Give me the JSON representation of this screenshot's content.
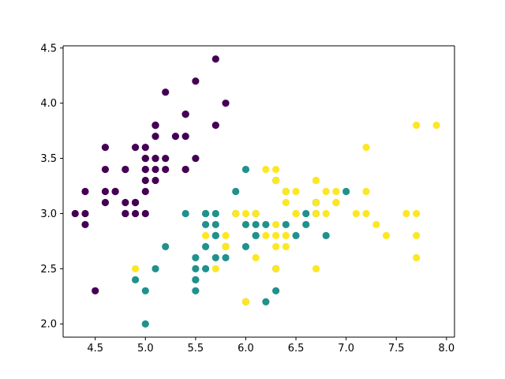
{
  "chart_data": {
    "type": "scatter",
    "title": "",
    "xlabel": "",
    "ylabel": "",
    "xlim": [
      4.18,
      8.08
    ],
    "ylim": [
      1.88,
      4.52
    ],
    "xticks": [
      "4.5",
      "5.0",
      "5.5",
      "6.0",
      "6.5",
      "7.0",
      "7.5",
      "8.0"
    ],
    "yticks": [
      "2.0",
      "2.5",
      "3.0",
      "3.5",
      "4.0",
      "4.5"
    ],
    "grid": false,
    "legend": "none",
    "series": [
      {
        "color": "#440154",
        "points": [
          [
            5.1,
            3.5
          ],
          [
            4.9,
            3.0
          ],
          [
            4.7,
            3.2
          ],
          [
            4.6,
            3.1
          ],
          [
            5.0,
            3.6
          ],
          [
            5.4,
            3.9
          ],
          [
            4.6,
            3.4
          ],
          [
            5.0,
            3.4
          ],
          [
            4.4,
            2.9
          ],
          [
            4.9,
            3.1
          ],
          [
            5.4,
            3.7
          ],
          [
            4.8,
            3.4
          ],
          [
            4.8,
            3.0
          ],
          [
            4.3,
            3.0
          ],
          [
            5.8,
            4.0
          ],
          [
            5.7,
            4.4
          ],
          [
            5.4,
            3.9
          ],
          [
            5.1,
            3.5
          ],
          [
            5.7,
            3.8
          ],
          [
            5.1,
            3.8
          ],
          [
            5.4,
            3.4
          ],
          [
            5.1,
            3.7
          ],
          [
            4.6,
            3.6
          ],
          [
            5.1,
            3.3
          ],
          [
            4.8,
            3.4
          ],
          [
            5.0,
            3.0
          ],
          [
            5.0,
            3.4
          ],
          [
            5.2,
            3.5
          ],
          [
            5.2,
            3.4
          ],
          [
            4.7,
            3.2
          ],
          [
            4.8,
            3.1
          ],
          [
            5.4,
            3.4
          ],
          [
            5.2,
            4.1
          ],
          [
            5.5,
            4.2
          ],
          [
            4.9,
            3.1
          ],
          [
            5.0,
            3.2
          ],
          [
            5.5,
            3.5
          ],
          [
            4.9,
            3.6
          ],
          [
            4.4,
            3.0
          ],
          [
            5.1,
            3.4
          ],
          [
            5.0,
            3.5
          ],
          [
            4.5,
            2.3
          ],
          [
            4.4,
            3.2
          ],
          [
            5.0,
            3.5
          ],
          [
            5.1,
            3.8
          ],
          [
            4.8,
            3.0
          ],
          [
            5.1,
            3.8
          ],
          [
            4.6,
            3.2
          ],
          [
            5.3,
            3.7
          ],
          [
            5.0,
            3.3
          ]
        ]
      },
      {
        "color": "#21918c",
        "points": [
          [
            7.0,
            3.2
          ],
          [
            6.4,
            3.2
          ],
          [
            6.9,
            3.1
          ],
          [
            5.5,
            2.3
          ],
          [
            6.5,
            2.8
          ],
          [
            5.7,
            2.8
          ],
          [
            6.3,
            3.3
          ],
          [
            4.9,
            2.4
          ],
          [
            6.6,
            2.9
          ],
          [
            5.2,
            2.7
          ],
          [
            5.0,
            2.0
          ],
          [
            5.9,
            3.0
          ],
          [
            6.0,
            2.2
          ],
          [
            6.1,
            2.9
          ],
          [
            5.6,
            2.9
          ],
          [
            6.7,
            3.1
          ],
          [
            5.6,
            3.0
          ],
          [
            5.8,
            2.7
          ],
          [
            6.2,
            2.2
          ],
          [
            5.6,
            2.5
          ],
          [
            5.9,
            3.2
          ],
          [
            6.1,
            2.8
          ],
          [
            6.3,
            2.5
          ],
          [
            6.1,
            2.8
          ],
          [
            6.4,
            2.9
          ],
          [
            6.6,
            3.0
          ],
          [
            6.8,
            2.8
          ],
          [
            6.7,
            3.0
          ],
          [
            6.0,
            2.9
          ],
          [
            5.7,
            2.6
          ],
          [
            5.5,
            2.4
          ],
          [
            5.5,
            2.4
          ],
          [
            5.8,
            2.7
          ],
          [
            6.0,
            2.7
          ],
          [
            5.4,
            3.0
          ],
          [
            6.0,
            3.4
          ],
          [
            6.7,
            3.1
          ],
          [
            6.3,
            2.3
          ],
          [
            5.6,
            3.0
          ],
          [
            5.5,
            2.5
          ],
          [
            5.5,
            2.6
          ],
          [
            6.1,
            3.0
          ],
          [
            5.8,
            2.6
          ],
          [
            5.0,
            2.3
          ],
          [
            5.6,
            2.7
          ],
          [
            5.7,
            3.0
          ],
          [
            5.7,
            2.9
          ],
          [
            6.2,
            2.9
          ],
          [
            5.1,
            2.5
          ],
          [
            5.7,
            2.8
          ]
        ]
      },
      {
        "color": "#fde725",
        "points": [
          [
            6.3,
            3.3
          ],
          [
            5.8,
            2.7
          ],
          [
            7.1,
            3.0
          ],
          [
            6.3,
            2.9
          ],
          [
            6.5,
            3.0
          ],
          [
            7.6,
            3.0
          ],
          [
            4.9,
            2.5
          ],
          [
            7.3,
            2.9
          ],
          [
            6.7,
            2.5
          ],
          [
            7.2,
            3.6
          ],
          [
            6.5,
            3.2
          ],
          [
            6.4,
            2.7
          ],
          [
            6.8,
            3.0
          ],
          [
            5.7,
            2.5
          ],
          [
            5.8,
            2.8
          ],
          [
            6.4,
            3.2
          ],
          [
            6.5,
            3.0
          ],
          [
            7.7,
            3.8
          ],
          [
            7.7,
            2.6
          ],
          [
            6.0,
            2.2
          ],
          [
            6.9,
            3.2
          ],
          [
            5.6,
            2.8
          ],
          [
            7.7,
            2.8
          ],
          [
            6.3,
            2.7
          ],
          [
            6.7,
            3.3
          ],
          [
            7.2,
            3.2
          ],
          [
            6.2,
            2.8
          ],
          [
            6.1,
            3.0
          ],
          [
            6.4,
            2.8
          ],
          [
            7.2,
            3.0
          ],
          [
            7.4,
            2.8
          ],
          [
            7.9,
            3.8
          ],
          [
            6.4,
            2.8
          ],
          [
            6.3,
            2.8
          ],
          [
            6.1,
            2.6
          ],
          [
            7.7,
            3.0
          ],
          [
            6.3,
            3.4
          ],
          [
            6.4,
            3.1
          ],
          [
            6.0,
            3.0
          ],
          [
            6.9,
            3.1
          ],
          [
            6.7,
            3.1
          ],
          [
            6.9,
            3.1
          ],
          [
            5.8,
            2.7
          ],
          [
            6.8,
            3.2
          ],
          [
            6.7,
            3.3
          ],
          [
            6.7,
            3.0
          ],
          [
            6.3,
            2.5
          ],
          [
            6.5,
            3.0
          ],
          [
            6.2,
            3.4
          ],
          [
            5.9,
            3.0
          ]
        ]
      }
    ]
  }
}
